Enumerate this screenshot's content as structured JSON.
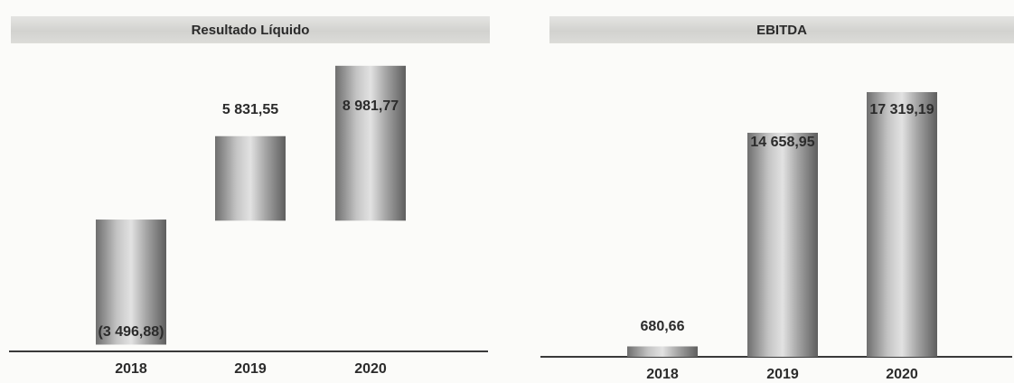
{
  "chart_data": [
    {
      "type": "bar",
      "title": "Resultado Líquido",
      "categories": [
        "2018",
        "2019",
        "2020"
      ],
      "values": [
        -3496.88,
        5831.55,
        8981.77
      ],
      "value_labels": [
        "(3 496,88)",
        "5 831,55",
        "8 981,77"
      ],
      "xlabel": "",
      "ylabel": "",
      "ylim": [
        -3800,
        9500
      ],
      "grid": false,
      "legend": "none",
      "bar_color": "#8a8a8a"
    },
    {
      "type": "bar",
      "title": "EBITDA",
      "categories": [
        "2018",
        "2019",
        "2020"
      ],
      "values": [
        680.66,
        14658.95,
        17319.19
      ],
      "value_labels": [
        "680,66",
        "14 658,95",
        "17 319,19"
      ],
      "xlabel": "",
      "ylabel": "",
      "ylim": [
        0,
        19800
      ],
      "grid": false,
      "legend": "none",
      "bar_color": "#8a8a8a"
    }
  ]
}
